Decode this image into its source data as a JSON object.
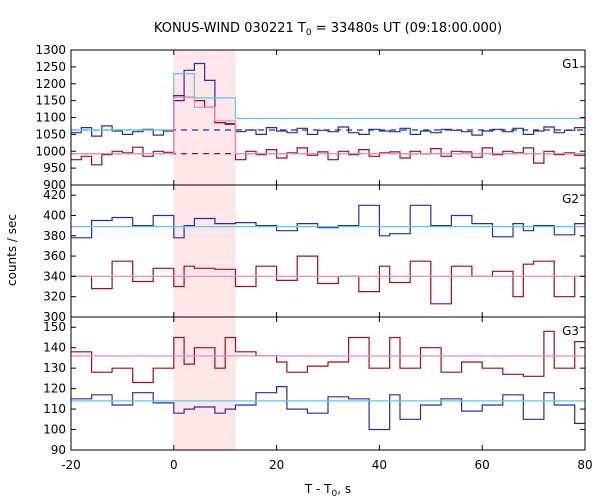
{
  "chart_data": {
    "type": "line",
    "title_main": "KONUS-WIND 030221 T",
    "title_sub": "0",
    "title_rest": " = 33480s UT (09:18:00.000)",
    "xlabel_main": "T - T",
    "xlabel_sub": "0",
    "xlabel_rest": ", s",
    "ylabel": "counts / sec",
    "xlim": [
      -20,
      80
    ],
    "x_ticks": [
      "-20",
      "0",
      "20",
      "40",
      "60",
      "80"
    ],
    "shaded_interval": [
      0,
      12
    ],
    "colors": {
      "blue": "#2b2ba8",
      "dark_red": "#9b0f1f",
      "light_blue": "#5bc8ee",
      "pink": "#e08fc8",
      "shade": "#ffe6e8"
    },
    "panels": [
      {
        "label": "G1",
        "ylim": [
          900,
          1300
        ],
        "y_ticks": [
          "900",
          "950",
          "1000",
          "1050",
          "1100",
          "1150",
          "1200",
          "1250",
          "1300"
        ],
        "bin_edges": [
          -20,
          -18,
          -16,
          -14,
          -12,
          -10,
          -8,
          -6,
          -4,
          -2,
          0,
          2,
          4,
          6,
          8,
          10,
          12,
          14,
          16,
          18,
          20,
          22,
          24,
          26,
          28,
          30,
          32,
          34,
          36,
          38,
          40,
          42,
          44,
          46,
          48,
          50,
          52,
          54,
          56,
          58,
          60,
          62,
          64,
          66,
          68,
          70,
          72,
          74,
          76,
          78,
          80
        ],
        "series": [
          {
            "color_key": "blue",
            "dashed_level": 1063,
            "values": [
              1055,
              1070,
              1045,
              1075,
              1060,
              1050,
              1058,
              1065,
              1048,
              1060,
              1150,
              1240,
              1260,
              1210,
              1085,
              1080,
              1058,
              1063,
              1050,
              1070,
              1060,
              1055,
              1068,
              1050,
              1062,
              1058,
              1072,
              1055,
              1050,
              1065,
              1060,
              1058,
              1068,
              1050,
              1060,
              1055,
              1065,
              1062,
              1058,
              1048,
              1060,
              1065,
              1058,
              1068,
              1050,
              1060,
              1072,
              1055,
              1062,
              1070
            ]
          },
          {
            "color_key": "light_blue",
            "level": 1063,
            "values": [
              1063,
              1063,
              1063,
              1063,
              1063,
              1063,
              1063,
              1063,
              1063,
              1063,
              1230,
              1230,
              1158,
              1158,
              1158,
              1158,
              1097,
              1097,
              1097,
              1097,
              1097,
              1097,
              1097,
              1097,
              1097,
              1097,
              1097,
              1097,
              1097,
              1097,
              1097,
              1097,
              1097,
              1097,
              1097,
              1097,
              1097,
              1097,
              1097,
              1097,
              1097,
              1097,
              1097,
              1097,
              1097,
              1097,
              1097,
              1097,
              1097,
              1097
            ]
          },
          {
            "color_key": "dark_red",
            "dashed_level": 993,
            "values": [
              975,
              985,
              960,
              990,
              1000,
              995,
              1012,
              985,
              1000,
              997,
              1165,
              1160,
              1150,
              1130,
              1085,
              1082,
              975,
              1000,
              990,
              1005,
              980,
              995,
              1010,
              988,
              998,
              975,
              1000,
              990,
              1005,
              985,
              995,
              998,
              980,
              1000,
              992,
              1008,
              985,
              1000,
              998,
              982,
              1010,
              990,
              1000,
              995,
              1010,
              965,
              1000,
              990,
              995,
              988
            ]
          },
          {
            "color_key": "pink",
            "level": 993,
            "values": [
              993,
              993,
              993,
              993,
              993,
              993,
              993,
              993,
              993,
              993,
              1160,
              1160,
              1130,
              1130,
              1090,
              1090,
              993,
              993,
              993,
              993,
              993,
              993,
              993,
              993,
              993,
              993,
              993,
              993,
              993,
              993,
              993,
              993,
              993,
              993,
              993,
              993,
              993,
              993,
              993,
              993,
              993,
              993,
              993,
              993,
              993,
              993,
              993,
              993,
              993,
              993
            ]
          }
        ]
      },
      {
        "label": "G2",
        "ylim": [
          300,
          430
        ],
        "y_ticks": [
          "300",
          "320",
          "340",
          "360",
          "380",
          "400",
          "420"
        ],
        "bin_edges": [
          -20,
          -16,
          -12,
          -8,
          -4,
          0,
          2,
          4,
          8,
          12,
          16,
          20,
          24,
          28,
          32,
          36,
          40,
          42,
          46,
          50,
          54,
          58,
          62,
          66,
          68,
          70,
          74,
          78,
          80
        ],
        "series": [
          {
            "color_key": "blue",
            "values": [
              378,
              395,
              398,
              390,
              400,
              378,
              390,
              397,
              392,
              393,
              390,
              385,
              392,
              388,
              390,
              410,
              380,
              382,
              410,
              390,
              400,
              392,
              379,
              392,
              385,
              390,
              381,
              392
            ]
          },
          {
            "color_key": "light_blue",
            "level": 389,
            "values": [
              389,
              389,
              389,
              389,
              389,
              389,
              389,
              389,
              389,
              389,
              389,
              389,
              389,
              389,
              389,
              389,
              389,
              389,
              389,
              389,
              389,
              389,
              389,
              389,
              389,
              389,
              389,
              389
            ]
          },
          {
            "color_key": "dark_red",
            "values": [
              340,
              328,
              355,
              335,
              348,
              330,
              350,
              348,
              347,
              330,
              350,
              336,
              360,
              333,
              340,
              325,
              350,
              334,
              355,
              313,
              350,
              340,
              345,
              320,
              352,
              355,
              320,
              340
            ]
          },
          {
            "color_key": "pink",
            "level": 340,
            "values": [
              340,
              340,
              340,
              340,
              340,
              340,
              340,
              340,
              340,
              340,
              340,
              340,
              340,
              340,
              340,
              340,
              340,
              340,
              340,
              340,
              340,
              340,
              340,
              340,
              340,
              340,
              340,
              340
            ]
          }
        ]
      },
      {
        "label": "G3",
        "ylim": [
          90,
          155
        ],
        "y_ticks": [
          "90",
          "100",
          "110",
          "120",
          "130",
          "140",
          "150"
        ],
        "bin_edges": [
          -20,
          -16,
          -12,
          -8,
          -4,
          0,
          2,
          4,
          8,
          10,
          12,
          16,
          20,
          22,
          26,
          30,
          34,
          38,
          42,
          44,
          48,
          52,
          56,
          60,
          64,
          68,
          72,
          74,
          78,
          80
        ],
        "series": [
          {
            "color_key": "blue",
            "values": [
              115,
              117,
              112,
              118,
              113,
              108,
              110,
              111,
              108,
              110,
              112,
              118,
              121,
              110,
              108,
              116,
              115,
              100,
              117,
              105,
              112,
              115,
              109,
              112,
              117,
              105,
              118,
              112,
              103
            ]
          },
          {
            "color_key": "light_blue",
            "level": 114,
            "values": [
              114,
              114,
              114,
              114,
              114,
              114,
              114,
              114,
              114,
              114,
              114,
              114,
              114,
              114,
              114,
              114,
              114,
              114,
              114,
              114,
              114,
              114,
              114,
              114,
              114,
              114,
              114,
              114,
              114
            ]
          },
          {
            "color_key": "dark_red",
            "values": [
              138,
              128,
              130,
              123,
              130,
              145,
              132,
              140,
              130,
              145,
              138,
              136,
              133,
              128,
              131,
              133,
              145,
              130,
              145,
              130,
              140,
              128,
              133,
              130,
              127,
              126,
              148,
              130,
              143
            ]
          },
          {
            "color_key": "pink",
            "level": 136,
            "values": [
              136,
              136,
              136,
              136,
              136,
              136,
              136,
              136,
              136,
              136,
              136,
              136,
              136,
              136,
              136,
              136,
              136,
              136,
              136,
              136,
              136,
              136,
              136,
              136,
              136,
              136,
              136,
              136,
              136
            ]
          }
        ]
      }
    ]
  }
}
